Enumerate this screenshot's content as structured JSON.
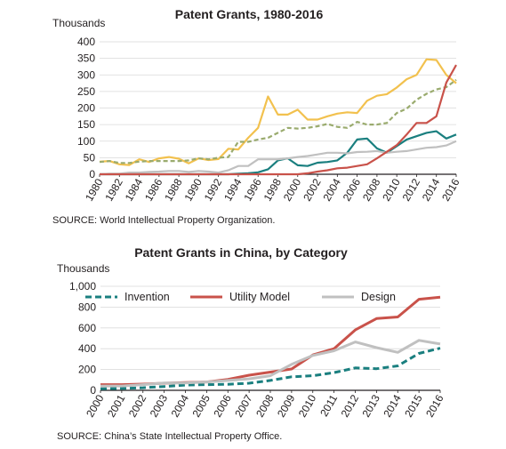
{
  "chart_data": [
    {
      "type": "line",
      "title": "Patent Grants, 1980-2016",
      "ylabel": "Thousands",
      "source": "SOURCE: World Intellectual Property Organization.",
      "ylim": [
        0,
        400
      ],
      "yticks": [
        "0",
        "50",
        "100",
        "150",
        "200",
        "250",
        "300",
        "350",
        "400"
      ],
      "xticks": [
        "1980",
        "1982",
        "1984",
        "1986",
        "1988",
        "1990",
        "1992",
        "1994",
        "1996",
        "1998",
        "2000",
        "2002",
        "2004",
        "2006",
        "2008",
        "2010",
        "2012",
        "2014",
        "2016"
      ],
      "xlim": [
        1980,
        2016
      ],
      "grid": "horizontal",
      "series": [
        {
          "color": "#f2c14e",
          "dash": "solid",
          "x": [
            1980,
            1981,
            1982,
            1983,
            1984,
            1985,
            1986,
            1987,
            1988,
            1989,
            1990,
            1991,
            1992,
            1993,
            1994,
            1995,
            1996,
            1997,
            1998,
            1999,
            2000,
            2001,
            2002,
            2003,
            2004,
            2005,
            2006,
            2007,
            2008,
            2009,
            2010,
            2011,
            2012,
            2013,
            2014,
            2015,
            2016
          ],
          "y": [
            38,
            40,
            30,
            28,
            45,
            37,
            48,
            52,
            47,
            33,
            48,
            43,
            46,
            77,
            75,
            110,
            140,
            235,
            180,
            180,
            195,
            165,
            165,
            175,
            183,
            187,
            185,
            222,
            237,
            242,
            262,
            287,
            300,
            347,
            345,
            300,
            275
          ]
        },
        {
          "color": "#9aab6e",
          "dash": "dashed",
          "x": [
            1980,
            1981,
            1982,
            1983,
            1984,
            1985,
            1986,
            1987,
            1988,
            1989,
            1990,
            1991,
            1992,
            1993,
            1994,
            1995,
            1996,
            1997,
            1998,
            1999,
            2000,
            2001,
            2002,
            2003,
            2004,
            2005,
            2006,
            2007,
            2008,
            2009,
            2010,
            2011,
            2012,
            2013,
            2014,
            2015,
            2016
          ],
          "y": [
            37,
            40,
            34,
            34,
            38,
            40,
            40,
            40,
            40,
            42,
            48,
            45,
            50,
            52,
            98,
            98,
            105,
            110,
            125,
            140,
            138,
            140,
            145,
            152,
            143,
            140,
            158,
            150,
            150,
            155,
            185,
            198,
            225,
            243,
            256,
            263,
            285
          ]
        },
        {
          "color": "#1a7f7f",
          "dash": "solid",
          "x": [
            1980,
            1981,
            1982,
            1983,
            1984,
            1985,
            1986,
            1987,
            1988,
            1989,
            1990,
            1991,
            1992,
            1993,
            1994,
            1995,
            1996,
            1997,
            1998,
            1999,
            2000,
            2001,
            2002,
            2003,
            2004,
            2005,
            2006,
            2007,
            2008,
            2009,
            2010,
            2011,
            2012,
            2013,
            2014,
            2015,
            2016
          ],
          "y": [
            0,
            0,
            0,
            0,
            0,
            0,
            0,
            0,
            0,
            0,
            0,
            0,
            0,
            0,
            2,
            3,
            6,
            15,
            42,
            48,
            27,
            25,
            35,
            37,
            42,
            65,
            105,
            108,
            78,
            65,
            85,
            105,
            115,
            125,
            130,
            108,
            120
          ]
        },
        {
          "color": "#c0c0c0",
          "dash": "solid",
          "x": [
            1980,
            1981,
            1982,
            1983,
            1984,
            1985,
            1986,
            1987,
            1988,
            1989,
            1990,
            1991,
            1992,
            1993,
            1994,
            1995,
            1996,
            1997,
            1998,
            1999,
            2000,
            2001,
            2002,
            2003,
            2004,
            2005,
            2006,
            2007,
            2008,
            2009,
            2010,
            2011,
            2012,
            2013,
            2014,
            2015,
            2016
          ],
          "y": [
            0,
            2,
            2,
            5,
            5,
            7,
            8,
            10,
            10,
            7,
            10,
            8,
            5,
            12,
            25,
            25,
            45,
            45,
            45,
            48,
            52,
            55,
            60,
            65,
            65,
            63,
            67,
            68,
            70,
            65,
            68,
            70,
            75,
            80,
            82,
            87,
            100
          ]
        },
        {
          "color": "#c9524a",
          "dash": "solid",
          "x": [
            1980,
            1981,
            1982,
            1983,
            1984,
            1985,
            1986,
            1987,
            1988,
            1989,
            1990,
            1991,
            1992,
            1993,
            1994,
            1995,
            1996,
            1997,
            1998,
            1999,
            2000,
            2001,
            2002,
            2003,
            2004,
            2005,
            2006,
            2007,
            2008,
            2009,
            2010,
            2011,
            2012,
            2013,
            2014,
            2015,
            2016
          ],
          "y": [
            0,
            0,
            0,
            0,
            0,
            0,
            0,
            0,
            0,
            0,
            0,
            0,
            0,
            0,
            0,
            0,
            0,
            0,
            0,
            0,
            0,
            3,
            8,
            12,
            18,
            20,
            25,
            30,
            48,
            68,
            88,
            120,
            155,
            155,
            175,
            277,
            330
          ]
        }
      ]
    },
    {
      "type": "line",
      "title": "Patent Grants in China, by Category",
      "ylabel": "Thousands",
      "source": "SOURCE: China’s State Intellectual Property Office.",
      "ylim": [
        0,
        1000
      ],
      "yticks": [
        "0",
        "200",
        "400",
        "600",
        "800",
        "1,000"
      ],
      "xticks": [
        "2000",
        "2001",
        "2002",
        "2003",
        "2004",
        "2005",
        "2006",
        "2007",
        "2008",
        "2009",
        "2010",
        "2011",
        "2012",
        "2013",
        "2014",
        "2015",
        "2016"
      ],
      "xlim": [
        2000,
        2016
      ],
      "grid": "horizontal",
      "legend": "top-left",
      "x": [
        2000,
        2001,
        2002,
        2003,
        2004,
        2005,
        2006,
        2007,
        2008,
        2009,
        2010,
        2011,
        2012,
        2013,
        2014,
        2015,
        2016
      ],
      "series": [
        {
          "name": "Invention",
          "color": "#1a7f7f",
          "dash": "dashed",
          "values": [
            15,
            18,
            25,
            37,
            50,
            55,
            58,
            68,
            95,
            130,
            140,
            170,
            215,
            208,
            235,
            355,
            405
          ]
        },
        {
          "name": "Utility Model",
          "color": "#c9524a",
          "dash": "solid",
          "values": [
            55,
            55,
            60,
            68,
            75,
            80,
            105,
            145,
            175,
            205,
            340,
            400,
            580,
            690,
            705,
            875,
            895
          ]
        },
        {
          "name": "Design",
          "color": "#c0c0c0",
          "dash": "solid",
          "values": [
            40,
            42,
            55,
            70,
            70,
            80,
            95,
            110,
            140,
            250,
            335,
            380,
            465,
            410,
            365,
            480,
            445
          ]
        }
      ]
    }
  ]
}
